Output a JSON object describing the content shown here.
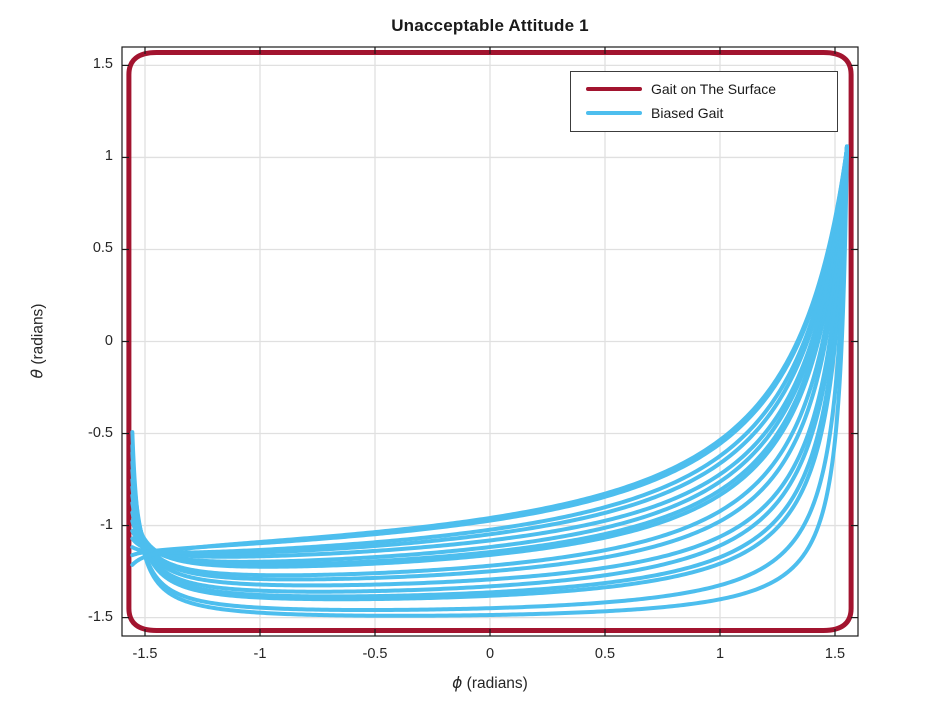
{
  "figure": {
    "background": "#ffffff",
    "text_color": "#262626",
    "grid_color": "#e0e0e0",
    "frame_color": "#1a1a1a"
  },
  "chart_data": {
    "type": "line",
    "title": "Unacceptable Attitude 1",
    "xlabel_symbol": "ϕ",
    "xlabel_rest": " (radians)",
    "ylabel_symbol": "θ",
    "ylabel_rest": " (radians)",
    "xlim": [
      -1.6,
      1.6
    ],
    "ylim": [
      -1.6,
      1.6
    ],
    "xticks": [
      -1.5,
      -1,
      -0.5,
      0,
      0.5,
      1,
      1.5
    ],
    "yticks": [
      -1.5,
      -1,
      -0.5,
      0,
      0.5,
      1,
      1.5
    ],
    "grid": true,
    "legend": {
      "location": "northeast"
    },
    "series": [
      {
        "name": "Gait on The Surface",
        "color": "#A2142F",
        "line_width": 5,
        "shape": "rounded_square",
        "extent": 1.57,
        "corner_radius": 0.12
      },
      {
        "name": "Biased Gait",
        "color": "#4DBEEE",
        "line_width": 4,
        "shape": "pole_curves",
        "model": "theta(phi) = floor + aL/(phi+pole_left) + aR/(pole_right-phi); aL=(left_theta-floor)*(pole_left-1.555); aR=(right_theta-floor)*(pole_right-1.552); phi in [-1.555,1.552]; clip theta<=1.06",
        "phi_range": [
          -1.555,
          1.552
        ],
        "theta_cap": 1.06,
        "curves": [
          {
            "floor": -1.56,
            "left_theta": -0.52,
            "right_theta": 1.05,
            "pole_left": 1.585,
            "pole_right": 1.585
          },
          {
            "floor": -1.548,
            "left_theta": -0.607,
            "right_theta": 1.05,
            "pole_left": 1.588,
            "pole_right": 1.601
          },
          {
            "floor": -1.515,
            "left_theta": -0.663,
            "right_theta": 1.05,
            "pole_left": 1.592,
            "pole_right": 1.624
          },
          {
            "floor": -1.508,
            "left_theta": -0.72,
            "right_theta": 1.05,
            "pole_left": 1.595,
            "pole_right": 1.632
          },
          {
            "floor": -1.498,
            "left_theta": -0.777,
            "right_theta": 1.05,
            "pole_left": 1.598,
            "pole_right": 1.648
          },
          {
            "floor": -1.468,
            "left_theta": -0.833,
            "right_theta": 1.05,
            "pole_left": 1.602,
            "pole_right": 1.655
          },
          {
            "floor": -1.456,
            "left_theta": -0.89,
            "right_theta": 1.05,
            "pole_left": 1.605,
            "pole_right": 1.679
          },
          {
            "floor": -1.445,
            "left_theta": -0.947,
            "right_theta": 1.05,
            "pole_left": 1.608,
            "pole_right": 1.695
          },
          {
            "floor": -1.412,
            "left_theta": -1.003,
            "right_theta": 1.05,
            "pole_left": 1.612,
            "pole_right": 1.718
          },
          {
            "floor": -1.404,
            "left_theta": -1.06,
            "right_theta": 1.05,
            "pole_left": 1.615,
            "pole_right": 1.726
          },
          {
            "floor": -1.394,
            "left_theta": -1.117,
            "right_theta": 1.05,
            "pole_left": 1.618,
            "pole_right": 1.742
          },
          {
            "floor": -1.36,
            "left_theta": -1.173,
            "right_theta": 1.05,
            "pole_left": 1.622,
            "pole_right": 1.749
          },
          {
            "floor": -1.352,
            "left_theta": -1.23,
            "right_theta": 1.05,
            "pole_left": 1.625,
            "pole_right": 1.773
          },
          {
            "floor": -1.342,
            "left_theta": -1.287,
            "right_theta": 1.05,
            "pole_left": 1.628,
            "pole_right": 1.789
          },
          {
            "floor": -1.31,
            "left_theta": -1.343,
            "right_theta": 1.05,
            "pole_left": 1.632,
            "pole_right": 1.812
          },
          {
            "floor": -1.3,
            "left_theta": -1.4,
            "right_theta": 1.05,
            "pole_left": 1.635,
            "pole_right": 1.82
          }
        ]
      }
    ]
  }
}
